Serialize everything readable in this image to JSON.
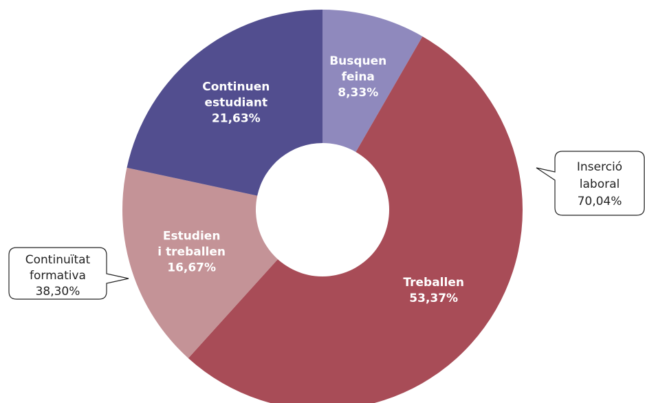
{
  "chart_data": {
    "type": "pie",
    "categories": [
      [
        "Busquen",
        "feina"
      ],
      [
        "Treballen"
      ],
      [
        "Estudien",
        "i treballen"
      ],
      [
        "Continuen",
        "estudiant"
      ]
    ],
    "values": [
      8.33,
      53.37,
      16.67,
      21.63
    ],
    "value_labels": [
      "8,33%",
      "53,37%",
      "16,67%",
      "21,63%"
    ],
    "colors": [
      "#8f89bd",
      "#a84c57",
      "#c49397",
      "#524e8f"
    ],
    "annotations": [
      [
        "Inserció",
        "laboral",
        "70,04%"
      ],
      [
        "Continuïtat",
        "formativa",
        "38,30%"
      ]
    ]
  }
}
